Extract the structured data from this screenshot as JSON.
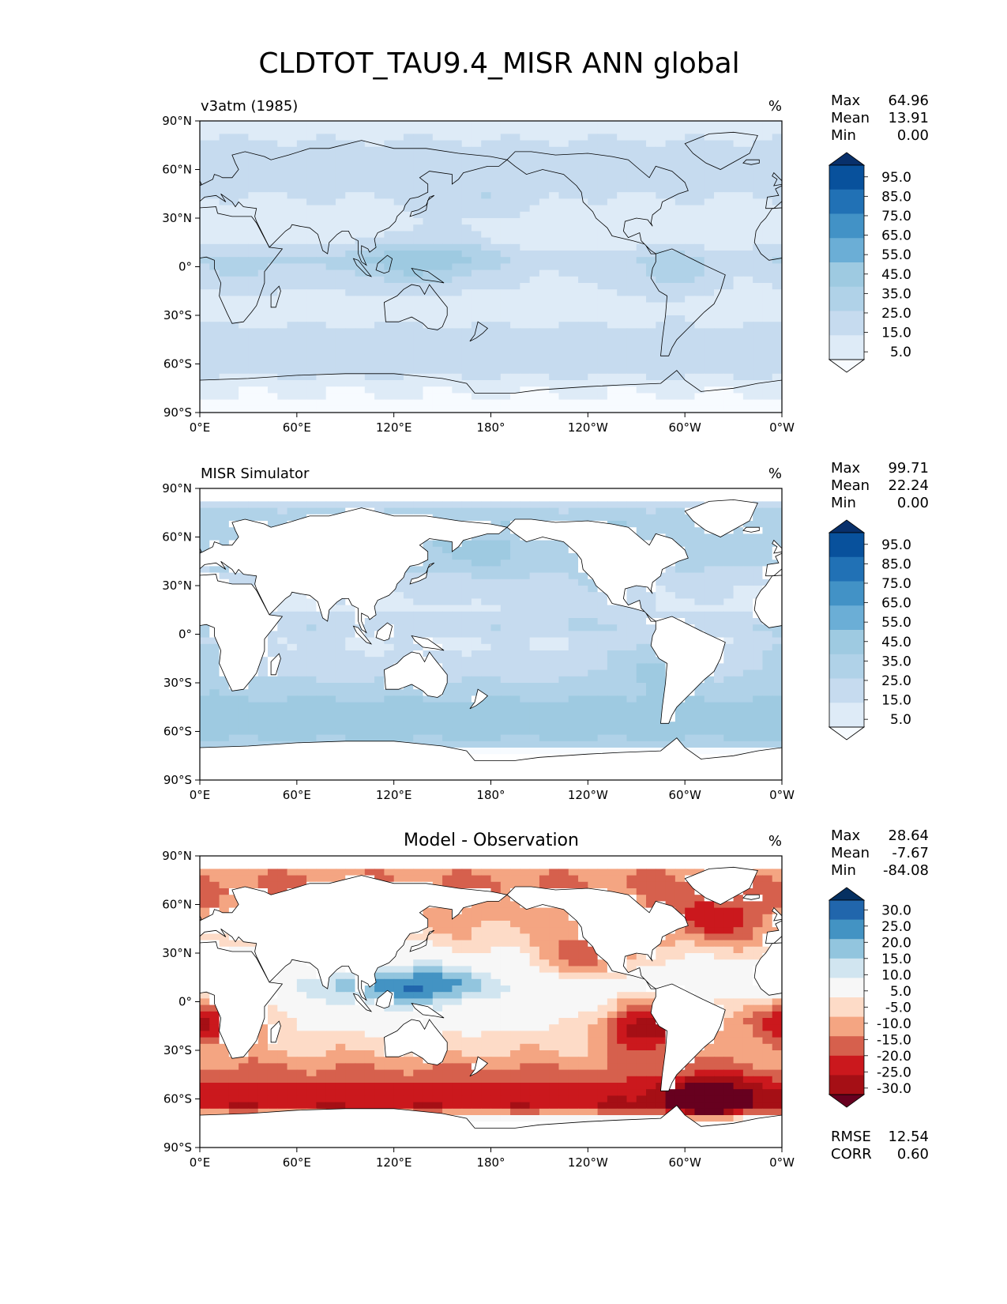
{
  "figure": {
    "title": "CLDTOT_TAU9.4_MISR ANN global"
  },
  "colors": {
    "blues": [
      "#f7fbff",
      "#deebf7",
      "#c6dbef",
      "#b0d2e8",
      "#9ecae1",
      "#6baed6",
      "#4292c6",
      "#2171b5",
      "#08519c",
      "#08306b"
    ],
    "diverging": [
      "#67001f",
      "#a50f15",
      "#cb181d",
      "#d6604d",
      "#f4a582",
      "#fddbc7",
      "#f7f7f7",
      "#d1e5f0",
      "#92c5de",
      "#4393c3",
      "#2166ac",
      "#053061"
    ],
    "land": "#ffffff",
    "coast": "#000000"
  },
  "chart_data": [
    {
      "type": "heatmap",
      "panel_title": "v3atm (1985)",
      "units": "%",
      "colormap": "blues",
      "xlabel": "",
      "ylabel": "",
      "xlim": [
        0,
        360
      ],
      "ylim": [
        -90,
        90
      ],
      "x_ticks": [
        "0°E",
        "60°E",
        "120°E",
        "180°",
        "120°W",
        "60°W",
        "0°W"
      ],
      "y_ticks": [
        "90°N",
        "60°N",
        "30°N",
        "0°",
        "30°S",
        "60°S",
        "90°S"
      ],
      "colorbar_levels": [
        "95.0",
        "85.0",
        "75.0",
        "65.0",
        "55.0",
        "45.0",
        "35.0",
        "25.0",
        "15.0",
        "5.0"
      ],
      "stats": [
        {
          "label": "Max",
          "value": "64.96"
        },
        {
          "label": "Mean",
          "value": "13.91"
        },
        {
          "label": "Min",
          "value": "0.00"
        }
      ],
      "mask_land": false,
      "zonal_base": [
        {
          "lat": 90,
          "v": 8
        },
        {
          "lat": 75,
          "v": 17
        },
        {
          "lat": 60,
          "v": 20
        },
        {
          "lat": 45,
          "v": 16
        },
        {
          "lat": 30,
          "v": 9
        },
        {
          "lat": 15,
          "v": 10
        },
        {
          "lat": 5,
          "v": 22
        },
        {
          "lat": 0,
          "v": 18
        },
        {
          "lat": -10,
          "v": 14
        },
        {
          "lat": -25,
          "v": 9
        },
        {
          "lat": -40,
          "v": 17
        },
        {
          "lat": -55,
          "v": 22
        },
        {
          "lat": -65,
          "v": 18
        },
        {
          "lat": -75,
          "v": 6
        },
        {
          "lat": -90,
          "v": 3
        }
      ],
      "features": [
        {
          "lon": 150,
          "lat": 5,
          "amp": 20
        },
        {
          "lon": 110,
          "lat": 2,
          "amp": 14
        },
        {
          "lon": 170,
          "lat": 40,
          "amp": 10
        },
        {
          "lon": 290,
          "lat": -5,
          "amp": 12
        },
        {
          "lon": 30,
          "lat": -2,
          "amp": 10
        }
      ]
    },
    {
      "type": "heatmap",
      "panel_title": "MISR Simulator",
      "units": "%",
      "colormap": "blues",
      "xlabel": "",
      "ylabel": "",
      "xlim": [
        0,
        360
      ],
      "ylim": [
        -90,
        90
      ],
      "x_ticks": [
        "0°E",
        "60°E",
        "120°E",
        "180°",
        "120°W",
        "60°W",
        "0°W"
      ],
      "y_ticks": [
        "90°N",
        "60°N",
        "30°N",
        "0°",
        "30°S",
        "60°S",
        "90°S"
      ],
      "colorbar_levels": [
        "95.0",
        "85.0",
        "75.0",
        "65.0",
        "55.0",
        "45.0",
        "35.0",
        "25.0",
        "15.0",
        "5.0"
      ],
      "stats": [
        {
          "label": "Max",
          "value": "99.71"
        },
        {
          "label": "Mean",
          "value": "22.24"
        },
        {
          "label": "Min",
          "value": "0.00"
        }
      ],
      "mask_land": true,
      "zonal_base": [
        {
          "lat": 90,
          "v": 0
        },
        {
          "lat": 82,
          "v": 0
        },
        {
          "lat": 80,
          "v": 22
        },
        {
          "lat": 70,
          "v": 34
        },
        {
          "lat": 55,
          "v": 32
        },
        {
          "lat": 45,
          "v": 28
        },
        {
          "lat": 30,
          "v": 16
        },
        {
          "lat": 15,
          "v": 14
        },
        {
          "lat": 5,
          "v": 24
        },
        {
          "lat": -5,
          "v": 14
        },
        {
          "lat": -20,
          "v": 18
        },
        {
          "lat": -35,
          "v": 30
        },
        {
          "lat": -50,
          "v": 44
        },
        {
          "lat": -60,
          "v": 42
        },
        {
          "lat": -68,
          "v": 30
        },
        {
          "lat": -72,
          "v": 0
        },
        {
          "lat": -90,
          "v": 0
        }
      ],
      "features": [
        {
          "lon": 278,
          "lat": -18,
          "amp": 18
        },
        {
          "lon": 10,
          "lat": -15,
          "amp": 14
        },
        {
          "lon": 235,
          "lat": 25,
          "amp": 10
        },
        {
          "lon": 170,
          "lat": 45,
          "amp": 8
        }
      ]
    },
    {
      "type": "heatmap",
      "panel_title": "Model - Observation",
      "units": "%",
      "colormap": "diverging",
      "xlabel": "",
      "ylabel": "",
      "xlim": [
        0,
        360
      ],
      "ylim": [
        -90,
        90
      ],
      "x_ticks": [
        "0°E",
        "60°E",
        "120°E",
        "180°",
        "120°W",
        "60°W",
        "0°W"
      ],
      "y_ticks": [
        "90°N",
        "60°N",
        "30°N",
        "0°",
        "30°S",
        "60°S",
        "90°S"
      ],
      "colorbar_levels": [
        "30.0",
        "25.0",
        "20.0",
        "15.0",
        "10.0",
        "5.0",
        "-5.0",
        "-10.0",
        "-15.0",
        "-20.0",
        "-25.0",
        "-30.0"
      ],
      "stats": [
        {
          "label": "Max",
          "value": "28.64"
        },
        {
          "label": "Mean",
          "value": "-7.67"
        },
        {
          "label": "Min",
          "value": "-84.08"
        }
      ],
      "extra_stats": [
        {
          "label": "RMSE",
          "value": "12.54"
        },
        {
          "label": "CORR",
          "value": "0.60"
        }
      ],
      "mask_land": true,
      "zonal_base": [
        {
          "lat": 90,
          "v": 0
        },
        {
          "lat": 82,
          "v": 0
        },
        {
          "lat": 80,
          "v": -14
        },
        {
          "lat": 70,
          "v": -16
        },
        {
          "lat": 55,
          "v": -12
        },
        {
          "lat": 40,
          "v": -9
        },
        {
          "lat": 25,
          "v": -3
        },
        {
          "lat": 10,
          "v": 4
        },
        {
          "lat": 0,
          "v": -1
        },
        {
          "lat": -15,
          "v": -4
        },
        {
          "lat": -30,
          "v": -9
        },
        {
          "lat": -45,
          "v": -17
        },
        {
          "lat": -55,
          "v": -23
        },
        {
          "lat": -65,
          "v": -24
        },
        {
          "lat": -72,
          "v": 0
        },
        {
          "lat": -90,
          "v": 0
        }
      ],
      "features": [
        {
          "lon": 145,
          "lat": 10,
          "amp": 16
        },
        {
          "lon": 100,
          "lat": 8,
          "amp": 10
        },
        {
          "lon": 278,
          "lat": -15,
          "amp": -25
        },
        {
          "lon": 5,
          "lat": -12,
          "amp": -22
        },
        {
          "lon": 240,
          "lat": 25,
          "amp": -14
        },
        {
          "lon": 315,
          "lat": -62,
          "amp": -18
        },
        {
          "lon": 318,
          "lat": 50,
          "amp": -12
        }
      ]
    }
  ]
}
